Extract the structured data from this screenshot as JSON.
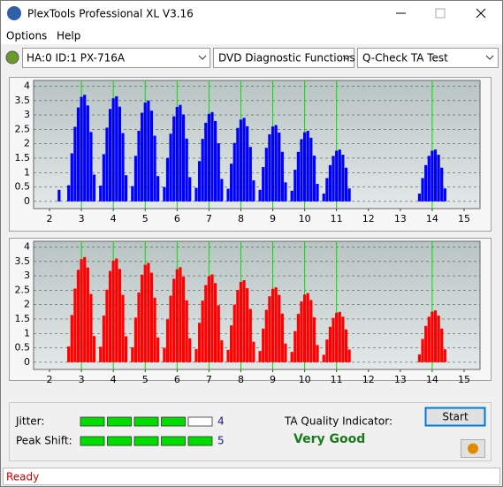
{
  "window": {
    "title": "PlexTools Professional XL V3.16"
  },
  "menu": [
    "Options",
    "Help"
  ],
  "toolbar": {
    "device": "HA:0 ID:1  PX-716A",
    "function": "DVD Diagnostic Functions",
    "test": "Q-Check TA Test"
  },
  "chart_data": [
    {
      "type": "bar",
      "color": "#0000ff",
      "grid": true,
      "xlim": [
        1.5,
        15.5
      ],
      "ylim": [
        -0.25,
        4.2
      ],
      "xticks": [
        2,
        3,
        4,
        5,
        6,
        7,
        8,
        9,
        10,
        11,
        12,
        13,
        14,
        15
      ],
      "yticks": [
        0,
        0.5,
        1,
        1.5,
        2,
        2.5,
        3,
        3.5,
        4
      ],
      "reference_lines": [
        3,
        4,
        5,
        6,
        7,
        8,
        9,
        10,
        11,
        14
      ],
      "reference_color": "#00e000",
      "x": [
        2.3,
        2.6,
        2.7,
        2.8,
        2.9,
        3.0,
        3.1,
        3.2,
        3.3,
        3.4,
        3.6,
        3.7,
        3.8,
        3.9,
        4.0,
        4.1,
        4.2,
        4.3,
        4.4,
        4.6,
        4.7,
        4.8,
        4.9,
        5.0,
        5.1,
        5.2,
        5.3,
        5.4,
        5.6,
        5.7,
        5.8,
        5.9,
        6.0,
        6.1,
        6.2,
        6.3,
        6.4,
        6.6,
        6.7,
        6.8,
        6.9,
        7.0,
        7.1,
        7.2,
        7.3,
        7.4,
        7.6,
        7.7,
        7.8,
        7.9,
        8.0,
        8.1,
        8.2,
        8.3,
        8.4,
        8.6,
        8.7,
        8.8,
        8.9,
        9.0,
        9.1,
        9.2,
        9.3,
        9.4,
        9.6,
        9.7,
        9.8,
        9.9,
        10.0,
        10.1,
        10.2,
        10.3,
        10.4,
        10.6,
        10.7,
        10.8,
        10.9,
        11.0,
        11.1,
        11.2,
        11.3,
        11.4,
        13.6,
        13.7,
        13.8,
        13.9,
        14.0,
        14.1,
        14.2,
        14.3,
        14.4
      ],
      "values": [
        0.4,
        0.56,
        1.67,
        2.59,
        3.26,
        3.63,
        3.7,
        3.33,
        2.41,
        0.93,
        0.55,
        1.64,
        2.56,
        3.21,
        3.58,
        3.65,
        3.29,
        2.37,
        0.91,
        0.53,
        1.58,
        2.45,
        3.08,
        3.43,
        3.5,
        3.15,
        2.28,
        0.88,
        0.5,
        1.51,
        2.35,
        2.95,
        3.28,
        3.35,
        3.02,
        2.18,
        0.84,
        0.47,
        1.4,
        2.17,
        2.73,
        3.04,
        3.1,
        2.79,
        2.02,
        0.78,
        0.44,
        1.31,
        2.03,
        2.55,
        2.84,
        2.9,
        2.61,
        1.89,
        0.73,
        0.4,
        1.19,
        1.86,
        2.33,
        2.6,
        2.65,
        2.39,
        1.72,
        0.66,
        0.37,
        1.1,
        1.72,
        2.16,
        2.4,
        2.45,
        2.21,
        1.59,
        0.61,
        0.27,
        0.81,
        1.26,
        1.58,
        1.76,
        1.8,
        1.62,
        1.17,
        0.45,
        0.27,
        0.81,
        1.26,
        1.58,
        1.76,
        1.8,
        1.62,
        1.17,
        0.45
      ]
    },
    {
      "type": "bar",
      "color": "#ff0000",
      "grid": true,
      "xlim": [
        1.5,
        15.5
      ],
      "ylim": [
        -0.25,
        4.2
      ],
      "xticks": [
        2,
        3,
        4,
        5,
        6,
        7,
        8,
        9,
        10,
        11,
        12,
        13,
        14,
        15
      ],
      "yticks": [
        0,
        0.5,
        1,
        1.5,
        2,
        2.5,
        3,
        3.5,
        4
      ],
      "reference_lines": [
        3,
        4,
        5,
        6,
        7,
        8,
        9,
        10,
        11,
        14
      ],
      "reference_color": "#00e000",
      "x": [
        2.6,
        2.7,
        2.8,
        2.9,
        3.0,
        3.1,
        3.2,
        3.3,
        3.4,
        3.6,
        3.7,
        3.8,
        3.9,
        4.0,
        4.1,
        4.2,
        4.3,
        4.4,
        4.6,
        4.7,
        4.8,
        4.9,
        5.0,
        5.1,
        5.2,
        5.3,
        5.4,
        5.6,
        5.7,
        5.8,
        5.9,
        6.0,
        6.1,
        6.2,
        6.3,
        6.4,
        6.6,
        6.7,
        6.8,
        6.9,
        7.0,
        7.1,
        7.2,
        7.3,
        7.4,
        7.6,
        7.7,
        7.8,
        7.9,
        8.0,
        8.1,
        8.2,
        8.3,
        8.4,
        8.6,
        8.7,
        8.8,
        8.9,
        9.0,
        9.1,
        9.2,
        9.3,
        9.4,
        9.6,
        9.7,
        9.8,
        9.9,
        10.0,
        10.1,
        10.2,
        10.3,
        10.4,
        10.6,
        10.7,
        10.8,
        10.9,
        11.0,
        11.1,
        11.2,
        11.3,
        11.4,
        13.6,
        13.7,
        13.8,
        13.9,
        14.0,
        14.1,
        14.2,
        14.3,
        14.4
      ],
      "values": [
        0.55,
        1.64,
        2.56,
        3.21,
        3.58,
        3.65,
        3.29,
        2.37,
        0.91,
        0.54,
        1.62,
        2.52,
        3.17,
        3.53,
        3.6,
        3.24,
        2.34,
        0.9,
        0.52,
        1.55,
        2.42,
        3.04,
        3.38,
        3.45,
        3.11,
        2.24,
        0.86,
        0.5,
        1.49,
        2.31,
        2.9,
        3.23,
        3.3,
        2.97,
        2.15,
        0.83,
        0.46,
        1.37,
        2.14,
        2.68,
        2.99,
        3.05,
        2.75,
        1.98,
        0.76,
        0.43,
        1.28,
        2.0,
        2.51,
        2.79,
        2.85,
        2.57,
        1.85,
        0.71,
        0.39,
        1.17,
        1.82,
        2.29,
        2.55,
        2.6,
        2.34,
        1.69,
        0.65,
        0.36,
        1.08,
        1.68,
        2.11,
        2.35,
        2.4,
        2.16,
        1.56,
        0.6,
        0.26,
        0.79,
        1.23,
        1.54,
        1.72,
        1.75,
        1.58,
        1.14,
        0.44,
        0.27,
        0.81,
        1.26,
        1.58,
        1.76,
        1.8,
        1.62,
        1.17,
        0.45
      ]
    }
  ],
  "indicators": [
    {
      "label": "Jitter:",
      "value": 4,
      "color": "#00dd00"
    },
    {
      "label": "Peak Shift:",
      "value": 5,
      "color": "#00dd00"
    }
  ],
  "quality": {
    "label": "TA Quality Indicator:",
    "value": "Very Good"
  },
  "buttons": {
    "start": "Start"
  },
  "status": "Ready"
}
